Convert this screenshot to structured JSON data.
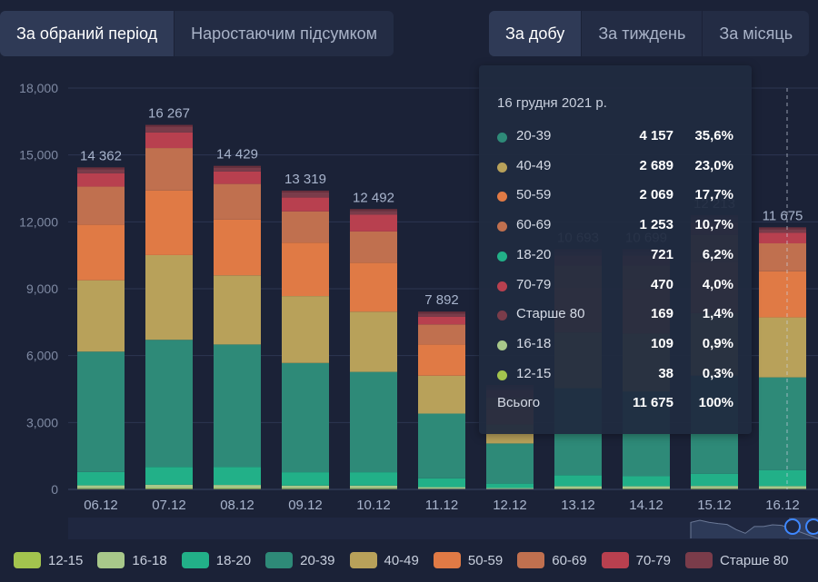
{
  "tabs_left": [
    {
      "label": "За обраний період",
      "active": true
    },
    {
      "label": "Наростаючим підсумком",
      "active": false
    }
  ],
  "tabs_right": [
    {
      "label": "За добу",
      "active": true
    },
    {
      "label": "За тиждень",
      "active": false
    },
    {
      "label": "За місяць",
      "active": false
    }
  ],
  "colors": {
    "12-15": "#a3c44e",
    "16-18": "#a8c88a",
    "18-20": "#22b088",
    "20-39": "#2e8a78",
    "40-49": "#b8a15a",
    "50-59": "#e07a45",
    "60-69": "#c0704f",
    "70-79": "#b8404f",
    "Старше 80": "#7a3c4a"
  },
  "chart_data": {
    "type": "bar",
    "stacked": true,
    "categories": [
      "06.12",
      "07.12",
      "08.12",
      "09.12",
      "10.12",
      "11.12",
      "12.12",
      "13.12",
      "14.12",
      "15.12",
      "16.12"
    ],
    "totals": [
      14362,
      16267,
      14429,
      13319,
      12492,
      7892,
      4600,
      10693,
      10699,
      12213,
      11675
    ],
    "total_labels": [
      "14 362",
      "16 267",
      "14 429",
      "13 319",
      "12 492",
      "7 892",
      "",
      "10 693",
      "10 699",
      "12 213",
      "11 675"
    ],
    "ylim": [
      0,
      18000
    ],
    "yticks": [
      0,
      3000,
      6000,
      9000,
      12000,
      15000,
      18000
    ],
    "ytick_labels": [
      "0",
      "3,000",
      "6,000",
      "9,000",
      "12,000",
      "15,000",
      "18,000"
    ],
    "series": [
      {
        "name": "12-15",
        "values": [
          50,
          60,
          60,
          50,
          50,
          30,
          20,
          40,
          40,
          45,
          38
        ]
      },
      {
        "name": "16-18",
        "values": [
          130,
          150,
          140,
          120,
          120,
          70,
          40,
          100,
          100,
          110,
          109
        ]
      },
      {
        "name": "18-20",
        "values": [
          600,
          800,
          800,
          600,
          600,
          400,
          200,
          500,
          450,
          550,
          721
        ]
      },
      {
        "name": "20-39",
        "values": [
          5400,
          5700,
          5500,
          4900,
          4500,
          2900,
          1800,
          3900,
          3800,
          4400,
          4157
        ]
      },
      {
        "name": "40-49",
        "values": [
          3200,
          3800,
          3100,
          3000,
          2700,
          1700,
          850,
          2500,
          2600,
          2800,
          2689
        ]
      },
      {
        "name": "50-59",
        "values": [
          2500,
          2900,
          2500,
          2400,
          2200,
          1400,
          700,
          2000,
          2000,
          2300,
          2069
        ]
      },
      {
        "name": "60-69",
        "values": [
          1700,
          1900,
          1600,
          1400,
          1400,
          900,
          500,
          1000,
          1050,
          1200,
          1253
        ]
      },
      {
        "name": "70-79",
        "values": [
          600,
          700,
          560,
          620,
          750,
          350,
          350,
          450,
          450,
          580,
          470
        ]
      },
      {
        "name": "Старше 80",
        "values": [
          182,
          257,
          169,
          229,
          172,
          142,
          140,
          203,
          209,
          228,
          169
        ]
      }
    ]
  },
  "tooltip": {
    "date": "16 грудня 2021 р.",
    "rows": [
      {
        "name": "20-39",
        "value": "4 157",
        "pct": "35,6%"
      },
      {
        "name": "40-49",
        "value": "2 689",
        "pct": "23,0%"
      },
      {
        "name": "50-59",
        "value": "2 069",
        "pct": "17,7%"
      },
      {
        "name": "60-69",
        "value": "1 253",
        "pct": "10,7%"
      },
      {
        "name": "18-20",
        "value": "721",
        "pct": "6,2%"
      },
      {
        "name": "70-79",
        "value": "470",
        "pct": "4,0%"
      },
      {
        "name": "Старше 80",
        "value": "169",
        "pct": "1,4%"
      },
      {
        "name": "16-18",
        "value": "109",
        "pct": "0,9%"
      },
      {
        "name": "12-15",
        "value": "38",
        "pct": "0,3%"
      }
    ],
    "total": {
      "label": "Всього",
      "value": "11 675",
      "pct": "100%"
    }
  },
  "legend": [
    "12-15",
    "16-18",
    "18-20",
    "20-39",
    "40-49",
    "50-59",
    "60-69",
    "70-79",
    "Старше 80"
  ]
}
